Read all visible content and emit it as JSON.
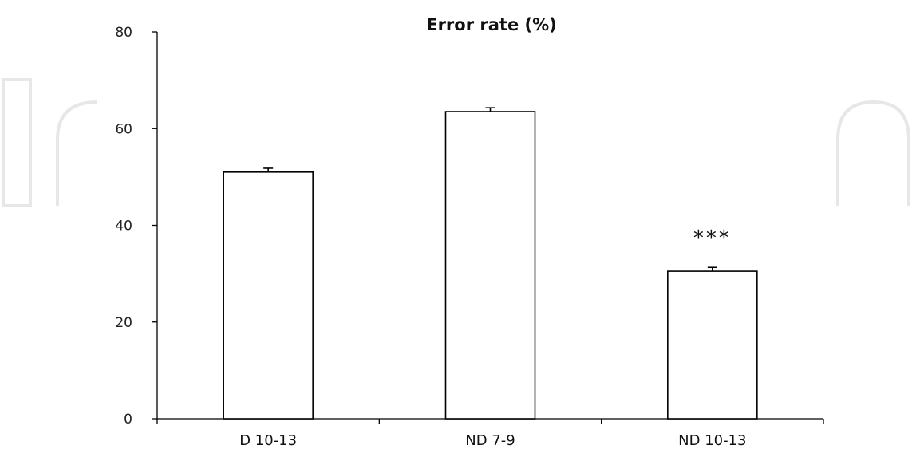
{
  "chart_data": {
    "type": "bar",
    "title": "Error rate (%)",
    "categories": [
      "D 10-13",
      "ND 7-9",
      "ND 10-13"
    ],
    "values": [
      51,
      63.5,
      30.5
    ],
    "errors": [
      0.8,
      0.8,
      0.8
    ],
    "annotations": [
      {
        "category": "ND 10-13",
        "text": "***"
      }
    ],
    "ylim": [
      0,
      80
    ],
    "yticks": [
      0,
      20,
      40,
      60,
      80
    ],
    "xlabel": "",
    "ylabel": "",
    "grid": false,
    "legend": false
  }
}
